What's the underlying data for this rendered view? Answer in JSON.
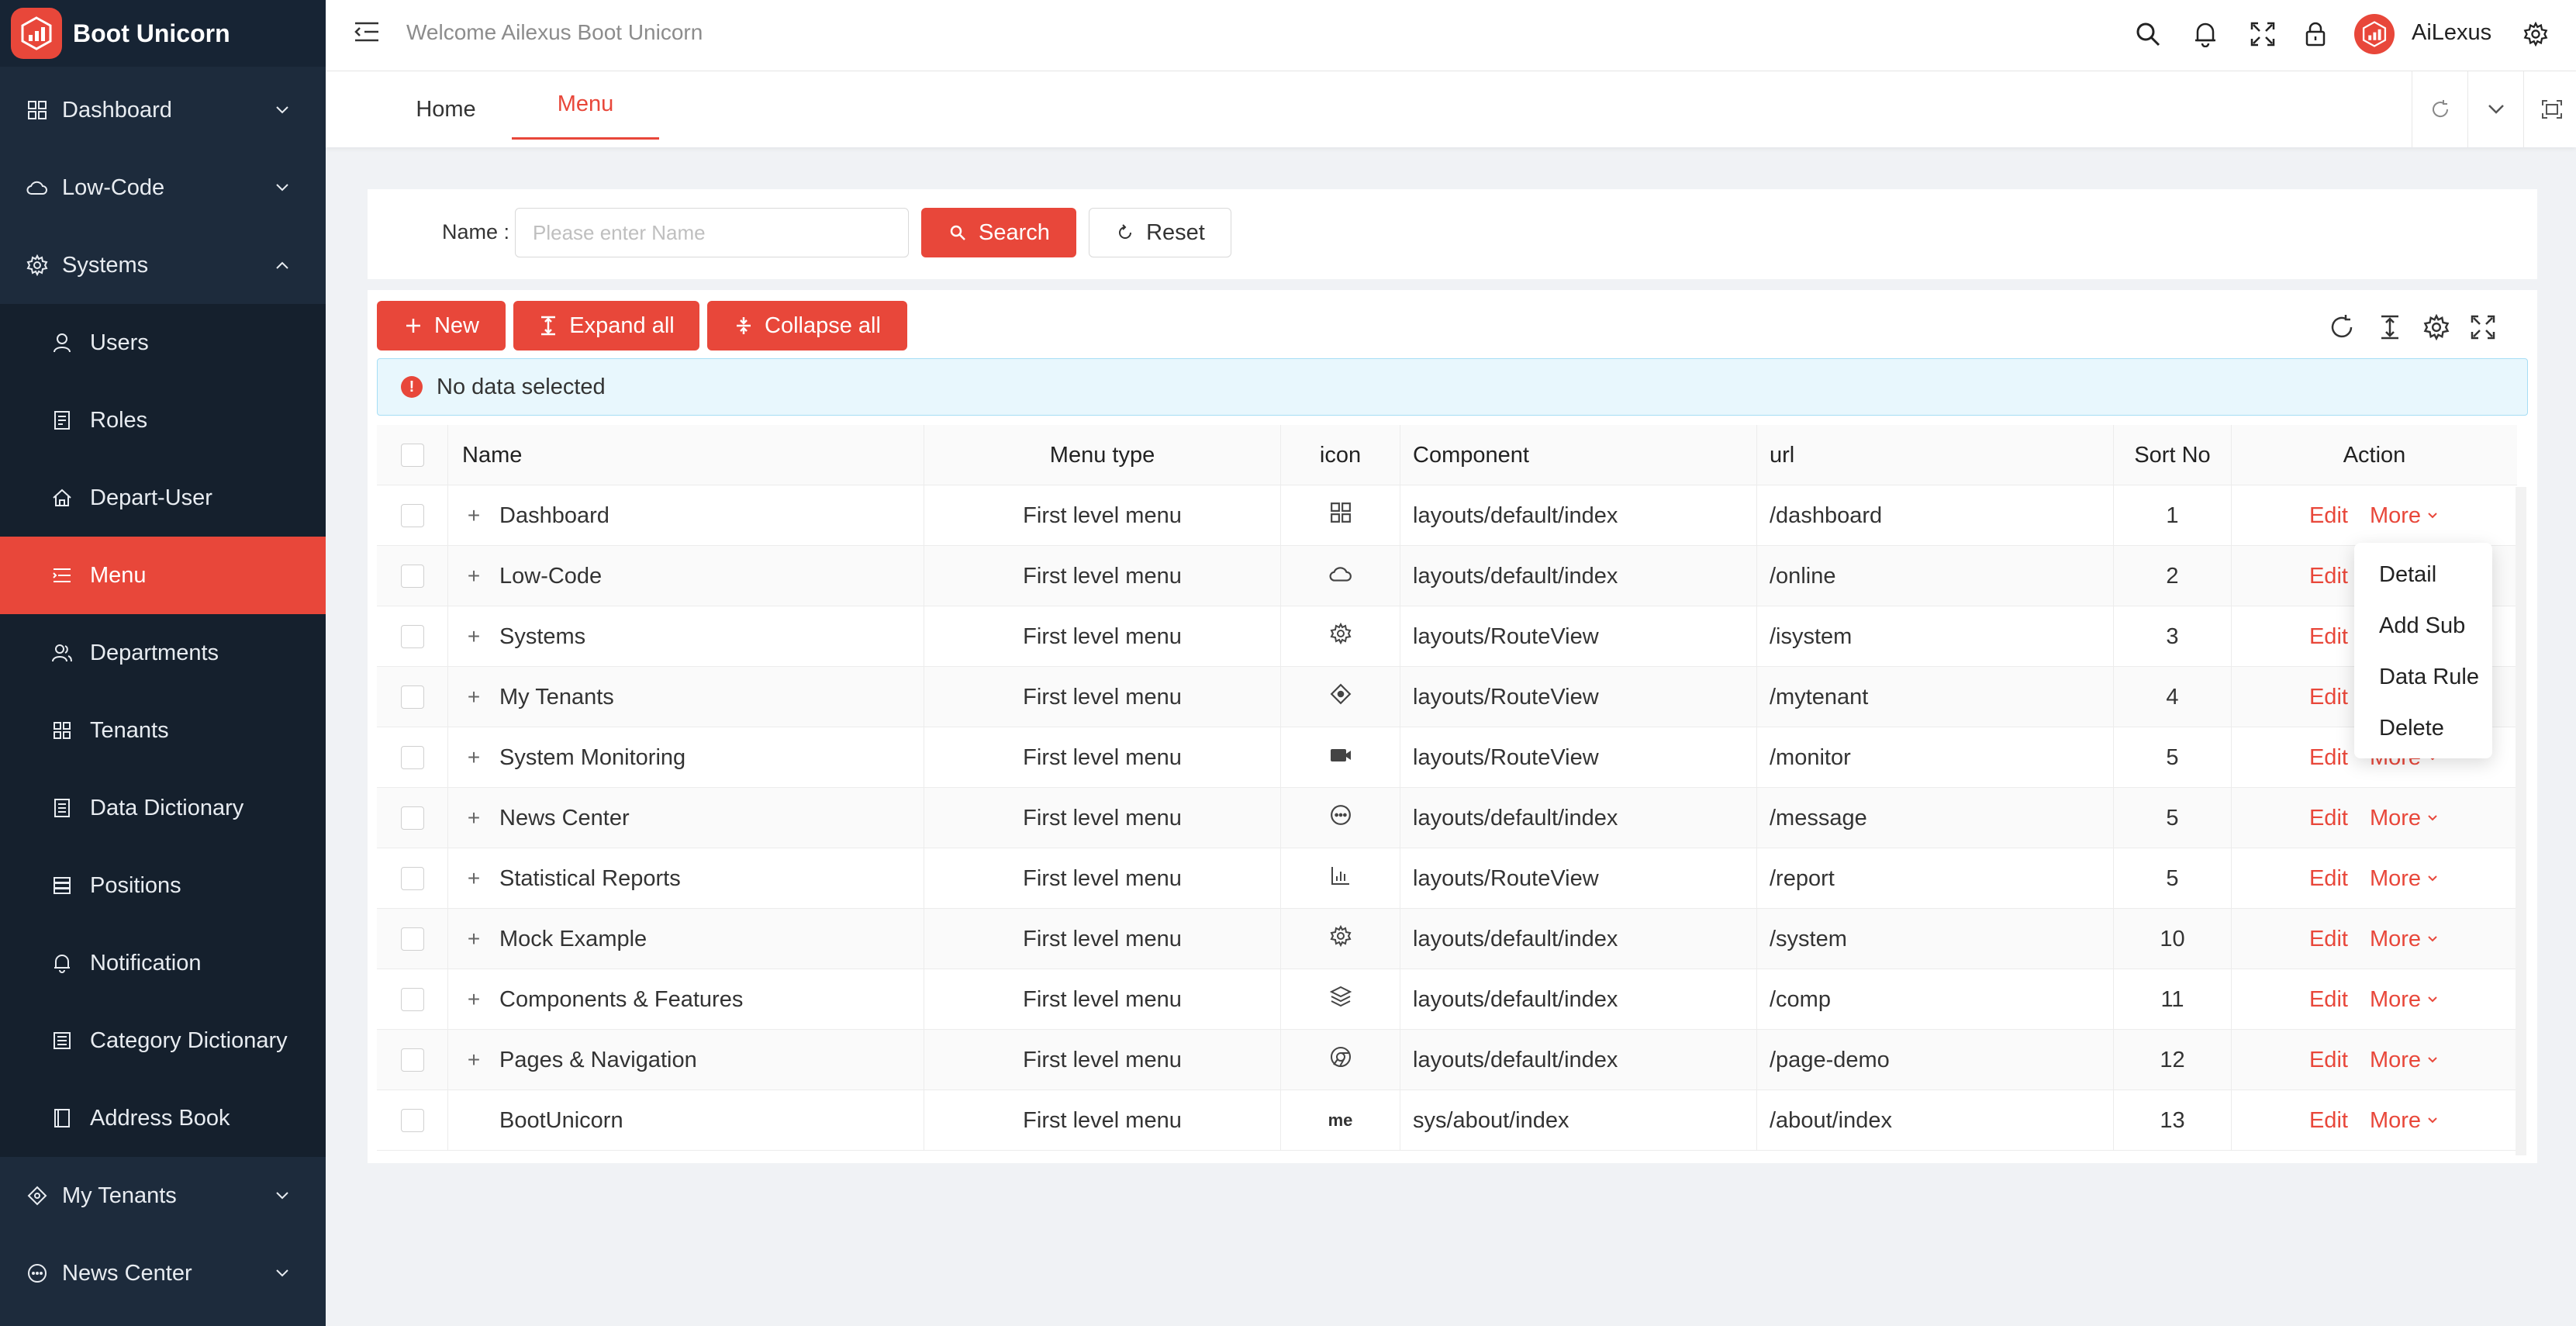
{
  "app": {
    "title": "Boot Unicorn",
    "welcome": "Welcome Ailexus Boot Unicorn",
    "user": "AiLexus",
    "accent": "#e8473a"
  },
  "sidebar": {
    "items": [
      {
        "label": "Dashboard",
        "icon": "dashboard-icon"
      },
      {
        "label": "Low-Code",
        "icon": "cloud-icon"
      },
      {
        "label": "Systems",
        "icon": "gear-icon"
      },
      {
        "label": "Users",
        "icon": "user-icon"
      },
      {
        "label": "Roles",
        "icon": "roles-icon"
      },
      {
        "label": "Depart-User",
        "icon": "home-icon"
      },
      {
        "label": "Menu",
        "icon": "menu-icon"
      },
      {
        "label": "Departments",
        "icon": "team-icon"
      },
      {
        "label": "Tenants",
        "icon": "grid-icon"
      },
      {
        "label": "Data Dictionary",
        "icon": "dictionary-icon"
      },
      {
        "label": "Positions",
        "icon": "positions-icon"
      },
      {
        "label": "Notification",
        "icon": "bell-icon"
      },
      {
        "label": "Category Dictionary",
        "icon": "category-icon"
      },
      {
        "label": "Address Book",
        "icon": "book-icon"
      },
      {
        "label": "My Tenants",
        "icon": "diamond-icon"
      },
      {
        "label": "News Center",
        "icon": "message-icon"
      }
    ]
  },
  "tabs": [
    {
      "label": "Home"
    },
    {
      "label": "Menu"
    }
  ],
  "search": {
    "name_label": "Name :",
    "placeholder": "Please enter Name",
    "search_label": "Search",
    "reset_label": "Reset"
  },
  "toolbar": {
    "new_label": "New",
    "expand_label": "Expand all",
    "collapse_label": "Collapse all"
  },
  "alert": {
    "text": "No data selected"
  },
  "table": {
    "headers": {
      "name": "Name",
      "type": "Menu type",
      "icon": "icon",
      "component": "Component",
      "url": "url",
      "sort": "Sort No",
      "action": "Action"
    },
    "rows": [
      {
        "name": "Dashboard",
        "type": "First level menu",
        "icon": "dashboard-icon",
        "component": "layouts/default/index",
        "url": "/dashboard",
        "sort": "1"
      },
      {
        "name": "Low-Code",
        "type": "First level menu",
        "icon": "cloud-icon",
        "component": "layouts/default/index",
        "url": "/online",
        "sort": "2"
      },
      {
        "name": "Systems",
        "type": "First level menu",
        "icon": "gear-icon",
        "component": "layouts/RouteView",
        "url": "/isystem",
        "sort": "3"
      },
      {
        "name": "My Tenants",
        "type": "First level menu",
        "icon": "diamond-icon",
        "component": "layouts/RouteView",
        "url": "/mytenant",
        "sort": "4"
      },
      {
        "name": "System Monitoring",
        "type": "First level menu",
        "icon": "video-icon",
        "component": "layouts/RouteView",
        "url": "/monitor",
        "sort": "5"
      },
      {
        "name": "News Center",
        "type": "First level menu",
        "icon": "message-icon",
        "component": "layouts/default/index",
        "url": "/message",
        "sort": "5"
      },
      {
        "name": "Statistical Reports",
        "type": "First level menu",
        "icon": "chart-icon",
        "component": "layouts/RouteView",
        "url": "/report",
        "sort": "5"
      },
      {
        "name": "Mock Example",
        "type": "First level menu",
        "icon": "gear-icon",
        "component": "layouts/default/index",
        "url": "/system",
        "sort": "10"
      },
      {
        "name": "Components & Features",
        "type": "First level menu",
        "icon": "layers-icon",
        "component": "layouts/default/index",
        "url": "/comp",
        "sort": "11"
      },
      {
        "name": "Pages & Navigation",
        "type": "First level menu",
        "icon": "chrome-icon",
        "component": "layouts/default/index",
        "url": "/page-demo",
        "sort": "12"
      },
      {
        "name": "BootUnicorn",
        "type": "First level menu",
        "icon": "me",
        "component": "sys/about/index",
        "url": "/about/index",
        "sort": "13"
      }
    ],
    "edit_label": "Edit",
    "more_label": "More"
  },
  "dropdown": {
    "items": [
      "Detail",
      "Add Sub",
      "Data Rule",
      "Delete"
    ]
  }
}
